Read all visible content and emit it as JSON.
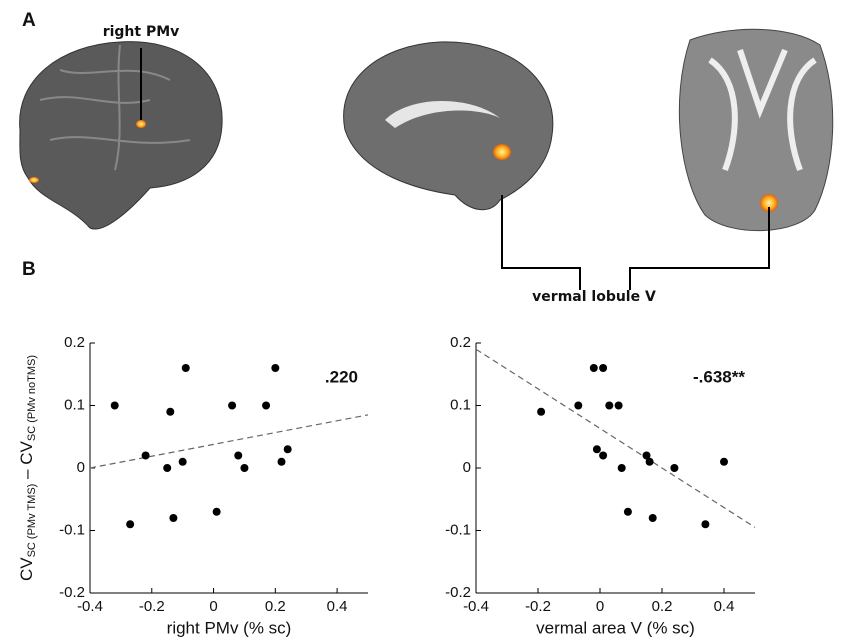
{
  "panel_labels": [
    "A",
    "B"
  ],
  "callouts": [
    "right PMv",
    "vermal lobule V"
  ],
  "chart_data": [
    {
      "type": "scatter",
      "xlabel": "right PMv (% sc)",
      "ylabel_parts": [
        "CV",
        "SC (PMv TMS)",
        " – CV",
        "SC (PMv noTMS)"
      ],
      "annotation": ".220",
      "x": [
        -0.32,
        -0.14,
        -0.22,
        -0.27,
        -0.15,
        -0.13,
        -0.1,
        -0.09,
        0.06,
        0.08,
        0.1,
        0.01,
        0.17,
        0.2,
        0.22,
        0.24
      ],
      "values": [
        0.1,
        0.09,
        0.02,
        -0.09,
        0.0,
        -0.08,
        0.01,
        0.16,
        0.1,
        0.02,
        0.0,
        -0.07,
        0.1,
        0.16,
        0.01,
        0.03
      ],
      "trend_line": {
        "x": [
          -0.4,
          0.5
        ],
        "y": [
          0.0,
          0.085
        ]
      },
      "xlim": [
        -0.4,
        0.5
      ],
      "ylim": [
        -0.2,
        0.2
      ],
      "xticks": [
        -0.4,
        -0.2,
        0,
        0.2,
        0.4
      ],
      "yticks": [
        -0.2,
        -0.1,
        0,
        0.1,
        0.2
      ],
      "color": "#000000"
    },
    {
      "type": "scatter",
      "xlabel": "vermal area V (% sc)",
      "annotation": "-.638**",
      "x": [
        -0.19,
        -0.07,
        -0.02,
        0.01,
        -0.01,
        0.01,
        0.03,
        0.06,
        0.07,
        0.15,
        0.16,
        0.17,
        0.09,
        0.24,
        0.34,
        0.4
      ],
      "values": [
        0.09,
        0.1,
        0.16,
        0.16,
        0.03,
        0.02,
        0.1,
        0.1,
        0.0,
        0.02,
        0.01,
        -0.08,
        -0.07,
        0.0,
        -0.09,
        0.01
      ],
      "trend_line": {
        "x": [
          -0.4,
          0.5
        ],
        "y": [
          0.19,
          -0.095
        ]
      },
      "xlim": [
        -0.4,
        0.5
      ],
      "ylim": [
        -0.2,
        0.2
      ],
      "xticks": [
        -0.4,
        -0.2,
        0,
        0.2,
        0.4
      ],
      "yticks": [
        -0.2,
        -0.1,
        0,
        0.1,
        0.2
      ],
      "color": "#000000"
    }
  ]
}
